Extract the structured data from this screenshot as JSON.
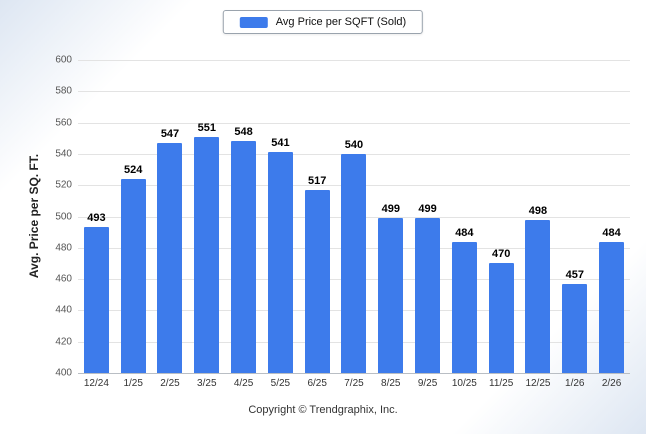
{
  "legend": {
    "label": "Avg Price per SQFT (Sold)"
  },
  "footer": {
    "copyright": "Copyright © Trendgraphix, Inc."
  },
  "colors": {
    "bar": "#3d7beb",
    "grid": "#e3e3e3"
  },
  "chart_data": {
    "type": "bar",
    "title": "",
    "legend": "Avg Price per SQFT (Sold)",
    "legend_position": "top",
    "categories": [
      "12/24",
      "1/25",
      "2/25",
      "3/25",
      "4/25",
      "5/25",
      "6/25",
      "7/25",
      "8/25",
      "9/25",
      "10/25",
      "11/25",
      "12/25",
      "1/26",
      "2/26"
    ],
    "values": [
      493,
      524,
      547,
      551,
      548,
      541,
      517,
      540,
      499,
      499,
      484,
      470,
      498,
      457,
      484
    ],
    "xlabel": "",
    "ylabel": "Avg. Price per SQ. FT.",
    "ylim": [
      400,
      600
    ],
    "ytick_step": 20,
    "grid": true
  }
}
